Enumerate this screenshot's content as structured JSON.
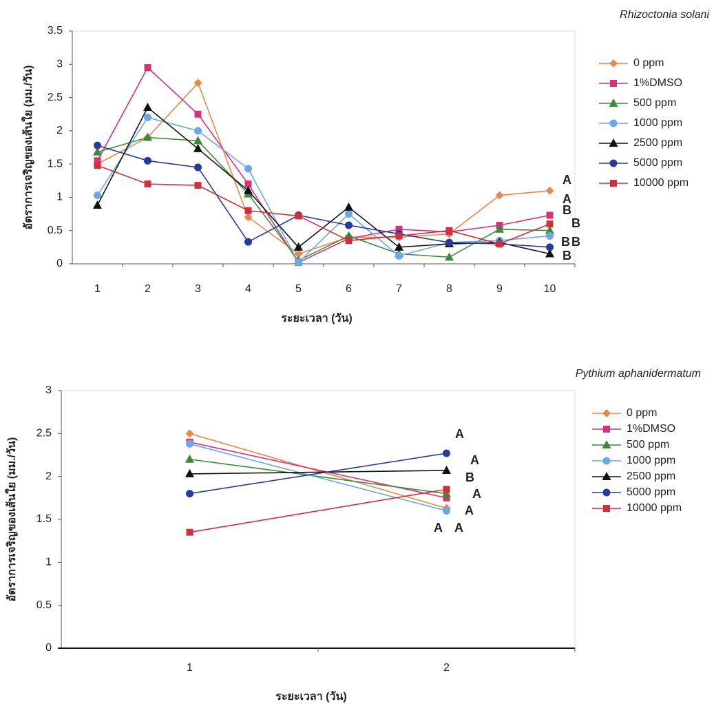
{
  "chart_data": [
    {
      "type": "line",
      "title": "Rhizoctonia solani",
      "x_label": "ระยะเวลา (วัน)",
      "y_label": "อัตราการเจริญของเส้นใย (มม./วัน)",
      "categories": [
        1,
        2,
        3,
        4,
        5,
        6,
        7,
        8,
        9,
        10
      ],
      "ylim": [
        0,
        3.5
      ],
      "yticks": [
        0,
        0.5,
        1,
        1.5,
        2,
        2.5,
        3,
        3.5
      ],
      "series": [
        {
          "name": "0 ppm",
          "color": "#e8884a",
          "marker": "diamond",
          "end_label": "A",
          "values": [
            1.5,
            1.9,
            2.72,
            0.7,
            0.15,
            0.4,
            0.4,
            0.45,
            1.03,
            1.1
          ]
        },
        {
          "name": "1%DMSO",
          "color": "#d6317a",
          "marker": "square",
          "end_label": "A",
          "values": [
            1.55,
            2.95,
            2.25,
            1.2,
            0.02,
            0.38,
            0.52,
            0.48,
            0.58,
            0.73
          ]
        },
        {
          "name": "500 ppm",
          "color": "#3a8a3a",
          "marker": "triangle",
          "end_label": "B",
          "values": [
            1.68,
            1.9,
            1.85,
            1.05,
            0.05,
            0.42,
            0.15,
            0.1,
            0.52,
            0.5
          ]
        },
        {
          "name": "1000 ppm",
          "color": "#6aa8e8",
          "marker": "circle",
          "end_label": "B",
          "values": [
            1.03,
            2.2,
            2.0,
            1.43,
            0.02,
            0.75,
            0.12,
            0.32,
            0.35,
            0.42
          ]
        },
        {
          "name": "2500 ppm",
          "color": "#111111",
          "marker": "triangle",
          "end_label": "B",
          "values": [
            0.88,
            2.35,
            1.73,
            1.1,
            0.25,
            0.85,
            0.25,
            0.3,
            0.32,
            0.15
          ]
        },
        {
          "name": "5000 ppm",
          "color": "#2a3a9a",
          "marker": "circle",
          "end_label": "B",
          "values": [
            1.78,
            1.55,
            1.45,
            0.33,
            0.73,
            0.58,
            0.45,
            0.32,
            0.3,
            0.25
          ]
        },
        {
          "name": "10000 ppm",
          "color": "#d0303a",
          "marker": "square",
          "end_label": "B",
          "values": [
            1.48,
            1.2,
            1.18,
            0.8,
            0.72,
            0.35,
            0.42,
            0.5,
            0.3,
            0.6
          ]
        }
      ]
    },
    {
      "type": "line",
      "title": "Pythium  aphanidermatum",
      "x_label": "ระยะเวลา (วัน)",
      "y_label": "อัตราการเจริญของเส้นใย (มม./วัน)",
      "categories": [
        1,
        2
      ],
      "ylim": [
        0,
        3
      ],
      "yticks": [
        0,
        0.5,
        1,
        1.5,
        2,
        2.5,
        3
      ],
      "series": [
        {
          "name": "0 ppm",
          "color": "#e8884a",
          "marker": "diamond",
          "end_label": "A",
          "values": [
            2.5,
            1.63
          ]
        },
        {
          "name": "1%DMSO",
          "color": "#d6317a",
          "marker": "square",
          "end_label": "A",
          "values": [
            2.4,
            1.75
          ]
        },
        {
          "name": "500 ppm",
          "color": "#3a8a3a",
          "marker": "triangle",
          "end_label": "A",
          "values": [
            2.2,
            1.8
          ]
        },
        {
          "name": "1000 ppm",
          "color": "#6aa8e8",
          "marker": "circle",
          "end_label": "A",
          "values": [
            2.38,
            1.6
          ]
        },
        {
          "name": "2500 ppm",
          "color": "#111111",
          "marker": "triangle",
          "end_label": "A",
          "values": [
            2.03,
            2.07
          ]
        },
        {
          "name": "5000 ppm",
          "color": "#2a3a9a",
          "marker": "circle",
          "end_label": "A",
          "values": [
            1.8,
            2.27
          ]
        },
        {
          "name": "10000 ppm",
          "color": "#d0303a",
          "marker": "square",
          "end_label": "B",
          "values": [
            1.35,
            1.85
          ]
        }
      ]
    }
  ]
}
